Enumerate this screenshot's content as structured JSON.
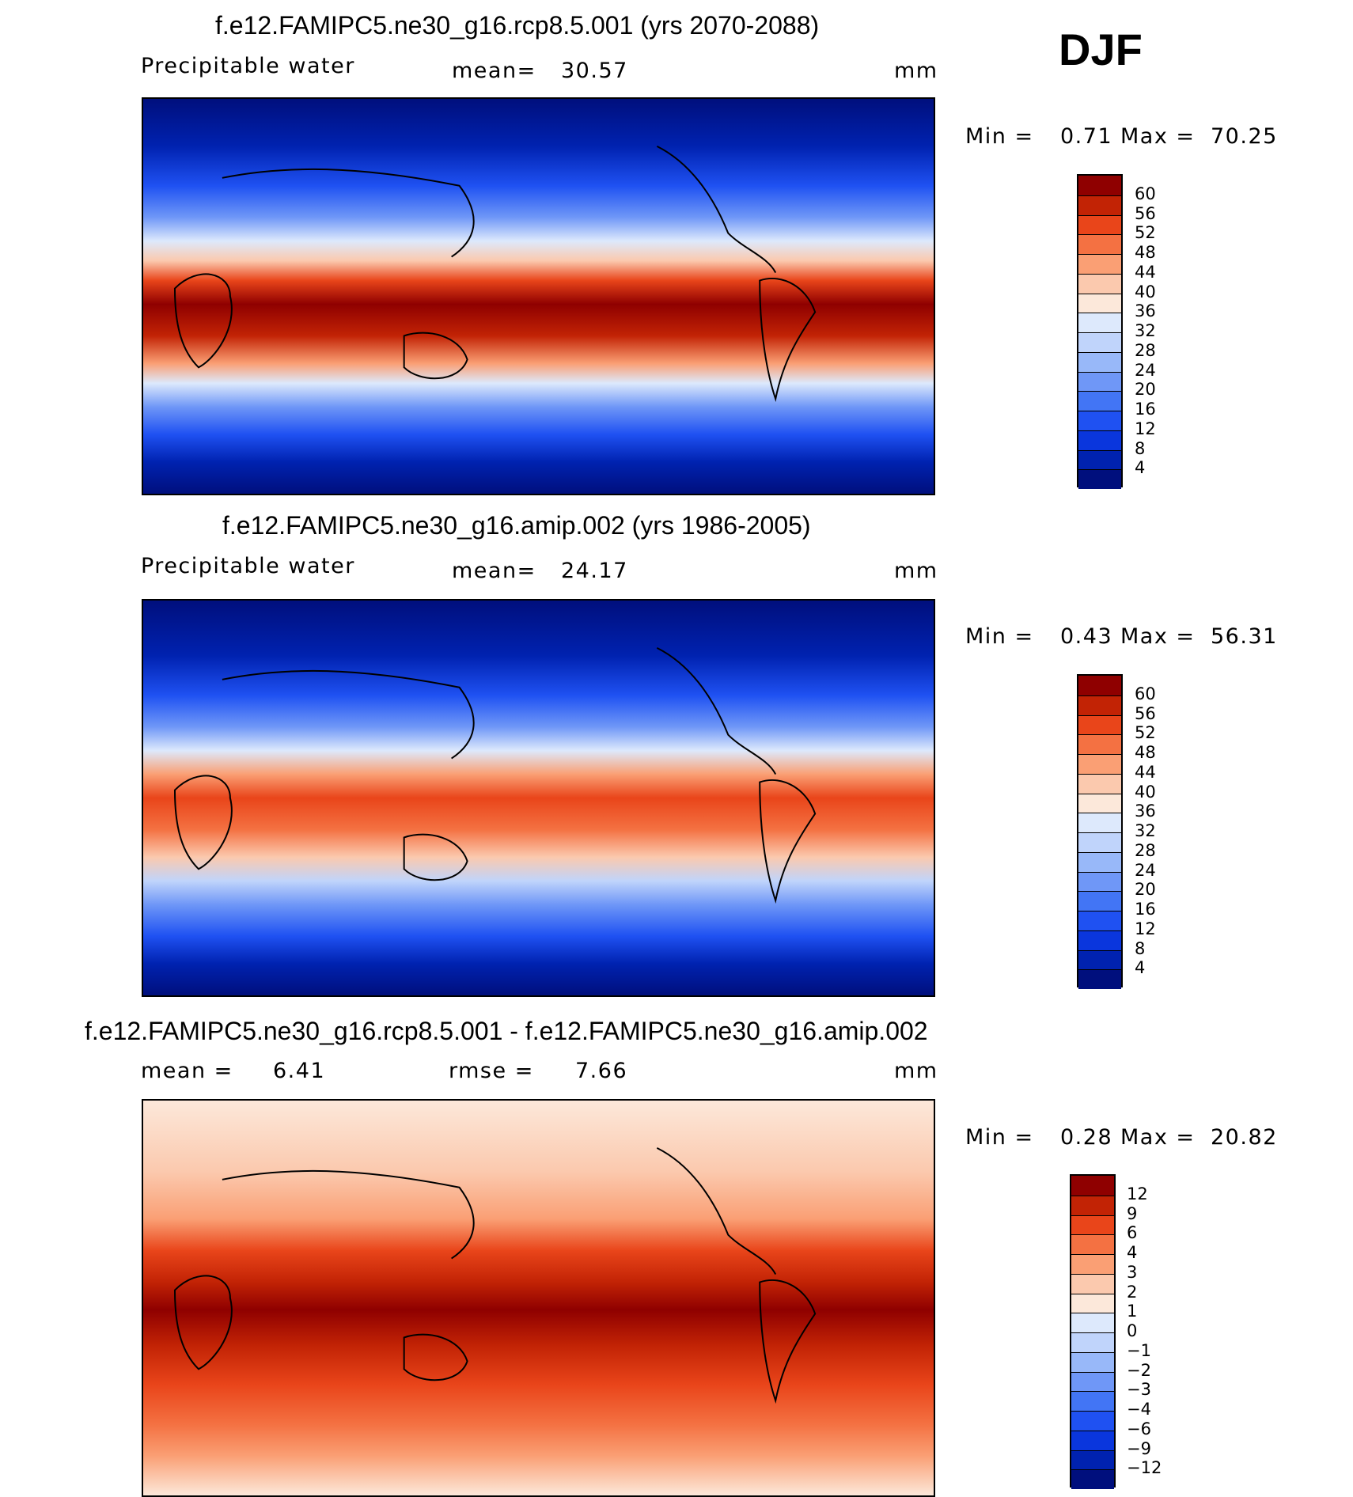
{
  "season": "DJF",
  "colors": {
    "abs_scale": [
      "#000f7d",
      "#0022b0",
      "#0a36dd",
      "#1f51f2",
      "#4275f5",
      "#6f97f7",
      "#98b8f9",
      "#c0d4fb",
      "#dde9fc",
      "#fce8da",
      "#fbc9ae",
      "#fa9f74",
      "#f47142",
      "#e9451a",
      "#c22305",
      "#8f0000"
    ],
    "diff_scale": [
      "#000f7d",
      "#0022b0",
      "#0a36dd",
      "#1f51f2",
      "#4275f5",
      "#6f97f7",
      "#98b8f9",
      "#c0d4fb",
      "#dde9fc",
      "#fce8da",
      "#fbc9ae",
      "#fa9f74",
      "#f47142",
      "#e9451a",
      "#c22305",
      "#8f0000"
    ],
    "coastline": "#000000"
  },
  "panels": [
    {
      "id": "rcp85",
      "title": "f.e12.FAMIPC5.ne30_g16.rcp8.5.001 (yrs 2070-2088)",
      "variable": "Precipitable water",
      "stat_label": "mean=",
      "stat_value": "30.57",
      "units": "mm",
      "min_label": "Min =",
      "min_value": "0.71",
      "max_label": "Max =",
      "max_value": "70.25",
      "colorbar_ticks": [
        "60",
        "56",
        "52",
        "48",
        "44",
        "40",
        "36",
        "32",
        "28",
        "24",
        "20",
        "16",
        "12",
        "8",
        "4"
      ]
    },
    {
      "id": "amip",
      "title": "f.e12.FAMIPC5.ne30_g16.amip.002 (yrs 1986-2005)",
      "variable": "Precipitable water",
      "stat_label": "mean=",
      "stat_value": "24.17",
      "units": "mm",
      "min_label": "Min =",
      "min_value": "0.43",
      "max_label": "Max =",
      "max_value": "56.31",
      "colorbar_ticks": [
        "60",
        "56",
        "52",
        "48",
        "44",
        "40",
        "36",
        "32",
        "28",
        "24",
        "20",
        "16",
        "12",
        "8",
        "4"
      ]
    },
    {
      "id": "diff",
      "title": "f.e12.FAMIPC5.ne30_g16.rcp8.5.001 - f.e12.FAMIPC5.ne30_g16.amip.002",
      "stat_label": "mean =",
      "stat_value": "6.41",
      "rmse_label": "rmse =",
      "rmse_value": "7.66",
      "units": "mm",
      "min_label": "Min =",
      "min_value": "0.28",
      "max_label": "Max =",
      "max_value": "20.82",
      "colorbar_ticks": [
        "12",
        "9",
        "6",
        "4",
        "3",
        "2",
        "1",
        "0",
        "−1",
        "−2",
        "−3",
        "−4",
        "−6",
        "−9",
        "−12"
      ]
    }
  ]
}
